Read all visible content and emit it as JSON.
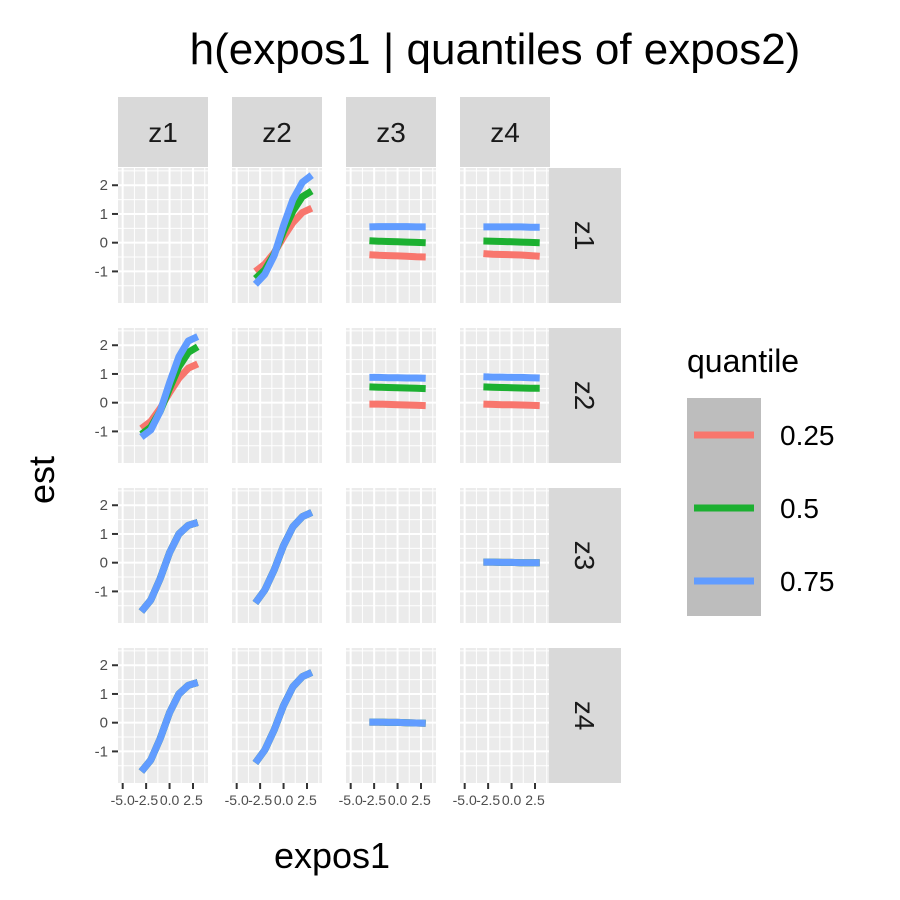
{
  "chart_data": {
    "type": "line",
    "title": "h(expos1 | quantiles of expos2)",
    "xlabel": "expos1",
    "ylabel": "est",
    "xlim": [
      -5.5,
      4.1
    ],
    "ylim": [
      -2.1,
      2.6
    ],
    "xticks": [
      -5.0,
      -2.5,
      0.0,
      2.5
    ],
    "xtick_labels": [
      "-5.0",
      "-2.5",
      "0.0",
      "2.5"
    ],
    "yticks": [
      -1,
      0,
      1,
      2
    ],
    "ytick_labels": [
      "-1",
      "0",
      "1",
      "2"
    ],
    "grid": true,
    "facet_cols": [
      "z1",
      "z2",
      "z3",
      "z4"
    ],
    "facet_rows": [
      "z1",
      "z2",
      "z3",
      "z4"
    ],
    "legend": {
      "title": "quantile",
      "position": "right",
      "entries": [
        {
          "name": "0.25",
          "color": "#F8766D"
        },
        {
          "name": "0.5",
          "color": "#1CB031"
        },
        {
          "name": "0.75",
          "color": "#619CFF"
        }
      ]
    },
    "x": [
      -3.0,
      -2.0,
      -1.0,
      0.0,
      1.0,
      2.0,
      3.0
    ],
    "panels": [
      {
        "row": "z1",
        "col": "z2",
        "series": [
          {
            "name": "0.25",
            "values": [
              -1.0,
              -0.75,
              -0.35,
              0.2,
              0.7,
              1.05,
              1.2
            ]
          },
          {
            "name": "0.5",
            "values": [
              -1.25,
              -0.95,
              -0.4,
              0.4,
              1.1,
              1.6,
              1.8
            ]
          },
          {
            "name": "0.75",
            "values": [
              -1.45,
              -1.1,
              -0.45,
              0.6,
              1.5,
              2.1,
              2.35
            ]
          }
        ]
      },
      {
        "row": "z1",
        "col": "z3",
        "series": [
          {
            "name": "0.25",
            "values": [
              -0.42,
              -0.44,
              -0.45,
              -0.46,
              -0.47,
              -0.49,
              -0.5
            ]
          },
          {
            "name": "0.5",
            "values": [
              0.07,
              0.05,
              0.04,
              0.03,
              0.02,
              0.01,
              0.0
            ]
          },
          {
            "name": "0.75",
            "values": [
              0.55,
              0.56,
              0.56,
              0.56,
              0.56,
              0.55,
              0.55
            ]
          }
        ]
      },
      {
        "row": "z1",
        "col": "z4",
        "series": [
          {
            "name": "0.25",
            "values": [
              -0.38,
              -0.4,
              -0.41,
              -0.42,
              -0.43,
              -0.45,
              -0.47
            ]
          },
          {
            "name": "0.5",
            "values": [
              0.06,
              0.05,
              0.04,
              0.03,
              0.02,
              0.01,
              0.0
            ]
          },
          {
            "name": "0.75",
            "values": [
              0.55,
              0.55,
              0.55,
              0.55,
              0.55,
              0.54,
              0.54
            ]
          }
        ]
      },
      {
        "row": "z2",
        "col": "z1",
        "series": [
          {
            "name": "0.25",
            "values": [
              -0.9,
              -0.65,
              -0.2,
              0.35,
              0.85,
              1.2,
              1.35
            ]
          },
          {
            "name": "0.5",
            "values": [
              -1.1,
              -0.85,
              -0.3,
              0.5,
              1.25,
              1.75,
              1.95
            ]
          },
          {
            "name": "0.75",
            "values": [
              -1.2,
              -0.95,
              -0.3,
              0.7,
              1.6,
              2.15,
              2.3
            ]
          }
        ]
      },
      {
        "row": "z2",
        "col": "z3",
        "series": [
          {
            "name": "0.25",
            "values": [
              -0.05,
              -0.05,
              -0.06,
              -0.07,
              -0.08,
              -0.09,
              -0.1
            ]
          },
          {
            "name": "0.5",
            "values": [
              0.55,
              0.54,
              0.53,
              0.52,
              0.51,
              0.5,
              0.49
            ]
          },
          {
            "name": "0.75",
            "values": [
              0.88,
              0.88,
              0.87,
              0.87,
              0.86,
              0.86,
              0.85
            ]
          }
        ]
      },
      {
        "row": "z2",
        "col": "z4",
        "series": [
          {
            "name": "0.25",
            "values": [
              -0.05,
              -0.06,
              -0.07,
              -0.07,
              -0.08,
              -0.09,
              -0.1
            ]
          },
          {
            "name": "0.5",
            "values": [
              0.55,
              0.54,
              0.53,
              0.52,
              0.51,
              0.5,
              0.5
            ]
          },
          {
            "name": "0.75",
            "values": [
              0.9,
              0.89,
              0.89,
              0.88,
              0.88,
              0.87,
              0.86
            ]
          }
        ]
      },
      {
        "row": "z3",
        "col": "z1",
        "series": [
          {
            "name": "0.25",
            "values": [
              -1.7,
              -1.3,
              -0.55,
              0.35,
              1.0,
              1.3,
              1.4
            ]
          },
          {
            "name": "0.5",
            "values": [
              -1.7,
              -1.3,
              -0.55,
              0.35,
              1.0,
              1.3,
              1.4
            ]
          },
          {
            "name": "0.75",
            "values": [
              -1.7,
              -1.3,
              -0.55,
              0.35,
              1.0,
              1.3,
              1.4
            ]
          }
        ]
      },
      {
        "row": "z3",
        "col": "z2",
        "series": [
          {
            "name": "0.25",
            "values": [
              -1.4,
              -0.95,
              -0.25,
              0.6,
              1.25,
              1.6,
              1.75
            ]
          },
          {
            "name": "0.5",
            "values": [
              -1.4,
              -0.95,
              -0.25,
              0.6,
              1.25,
              1.6,
              1.75
            ]
          },
          {
            "name": "0.75",
            "values": [
              -1.4,
              -0.95,
              -0.25,
              0.6,
              1.25,
              1.6,
              1.75
            ]
          }
        ]
      },
      {
        "row": "z3",
        "col": "z4",
        "series": [
          {
            "name": "0.25",
            "values": [
              0.02,
              0.02,
              0.01,
              0.01,
              0.0,
              0.0,
              0.0
            ]
          },
          {
            "name": "0.5",
            "values": [
              0.02,
              0.02,
              0.01,
              0.01,
              0.0,
              0.0,
              0.0
            ]
          },
          {
            "name": "0.75",
            "values": [
              0.02,
              0.02,
              0.01,
              0.01,
              0.0,
              0.0,
              0.0
            ]
          }
        ]
      },
      {
        "row": "z4",
        "col": "z1",
        "series": [
          {
            "name": "0.25",
            "values": [
              -1.7,
              -1.3,
              -0.55,
              0.35,
              1.0,
              1.3,
              1.4
            ]
          },
          {
            "name": "0.5",
            "values": [
              -1.7,
              -1.3,
              -0.55,
              0.35,
              1.0,
              1.3,
              1.4
            ]
          },
          {
            "name": "0.75",
            "values": [
              -1.7,
              -1.3,
              -0.55,
              0.35,
              1.0,
              1.3,
              1.4
            ]
          }
        ]
      },
      {
        "row": "z4",
        "col": "z2",
        "series": [
          {
            "name": "0.25",
            "values": [
              -1.4,
              -0.95,
              -0.25,
              0.6,
              1.25,
              1.6,
              1.75
            ]
          },
          {
            "name": "0.5",
            "values": [
              -1.4,
              -0.95,
              -0.25,
              0.6,
              1.25,
              1.6,
              1.75
            ]
          },
          {
            "name": "0.75",
            "values": [
              -1.4,
              -0.95,
              -0.25,
              0.6,
              1.25,
              1.6,
              1.75
            ]
          }
        ]
      },
      {
        "row": "z4",
        "col": "z3",
        "series": [
          {
            "name": "0.25",
            "values": [
              0.02,
              0.02,
              0.01,
              0.01,
              0.0,
              -0.01,
              -0.02
            ]
          },
          {
            "name": "0.5",
            "values": [
              0.02,
              0.02,
              0.01,
              0.01,
              0.0,
              -0.01,
              -0.02
            ]
          },
          {
            "name": "0.75",
            "values": [
              0.02,
              0.02,
              0.01,
              0.01,
              0.0,
              -0.01,
              -0.02
            ]
          }
        ]
      }
    ]
  }
}
